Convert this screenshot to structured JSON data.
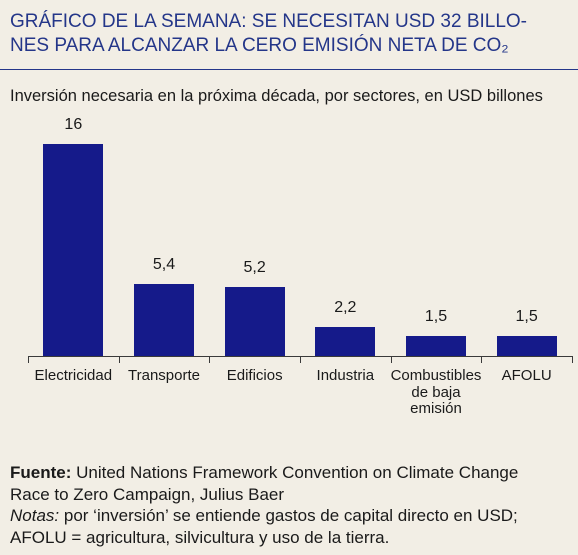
{
  "colors": {
    "background": "#f2eee5",
    "title": "#243689",
    "bars": "#151a8a",
    "text": "#1a1a1a",
    "axis": "#3a3a3a"
  },
  "chart_data": {
    "type": "bar",
    "title_lines": [
      "GRÁFICO DE LA SEMANA: SE NECESITAN USD 32 BILLO-",
      "NES PARA ALCANZAR LA CERO EMISIÓN NETA DE CO₂"
    ],
    "subtitle": "Inversión necesaria en la próxima década, por sectores, en USD billones",
    "categories": [
      "Electricidad",
      "Transporte",
      "Edificios",
      "Industria",
      "Combustibles de baja emisión",
      "AFOLU"
    ],
    "values": [
      16,
      5.4,
      5.2,
      2.2,
      1.5,
      1.5
    ],
    "value_labels": [
      "16",
      "5,4",
      "5,2",
      "2,2",
      "1,5",
      "1,5"
    ],
    "xlabel": "",
    "ylabel": "",
    "ylim": [
      0,
      16
    ],
    "grid": false,
    "legend": "none"
  },
  "footer": {
    "source_label": "Fuente:",
    "source_lines": [
      "United Nations Framework Convention on Climate Change",
      "Race to Zero Campaign, Julius Baer"
    ],
    "notes_label": "Notas:",
    "notes_lines": [
      "por ‘inversión’ se entiende gastos de capital directo en USD;",
      "AFOLU = agricultura, silvicultura y uso de la tierra."
    ]
  }
}
